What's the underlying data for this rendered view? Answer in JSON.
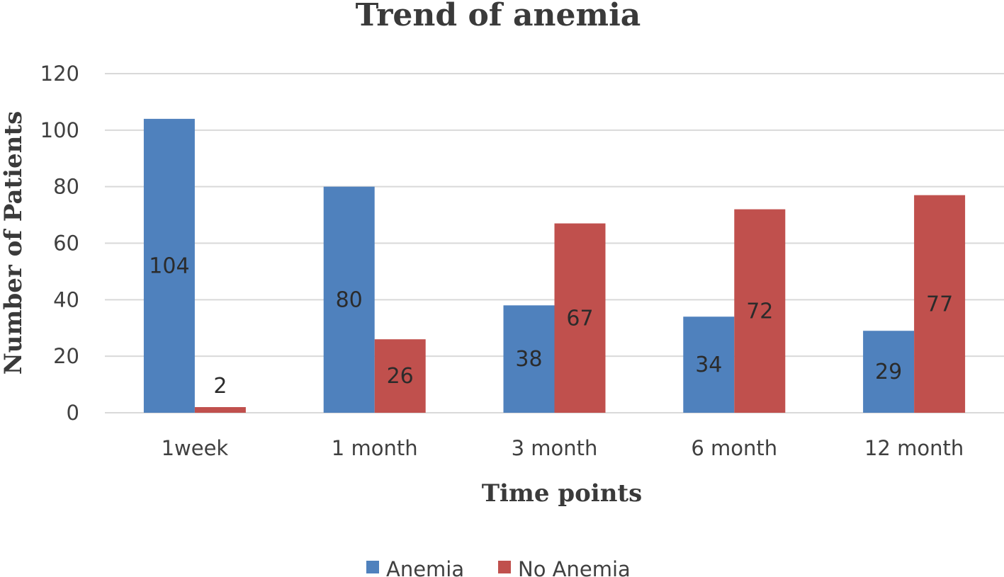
{
  "chart_data": {
    "type": "bar",
    "title": "Trend of anemia",
    "xlabel": "Time points",
    "ylabel": "Number of Patients",
    "categories": [
      "1week",
      "1 month",
      "3 month",
      "6 month",
      "12 month"
    ],
    "series": [
      {
        "name": "Anemia",
        "values": [
          104,
          80,
          38,
          34,
          29
        ],
        "color": "#4f81bd"
      },
      {
        "name": "No Anemia",
        "values": [
          2,
          26,
          67,
          72,
          77
        ],
        "color": "#c0504d"
      }
    ],
    "ylim": [
      0,
      120
    ],
    "yticks": [
      "0",
      "20",
      "40",
      "60",
      "80",
      "100",
      "120"
    ],
    "grid": true,
    "legend": "bottom-center"
  }
}
